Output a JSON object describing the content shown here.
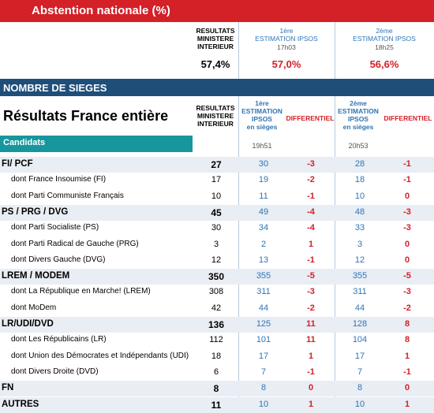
{
  "abstention": {
    "title": "Abstention nationale (%)",
    "col_ministere": "RESULTATS\nMINISTERE\nINTERIEUR",
    "col_est1_title": "1ère\nESTIMATION IPSOS",
    "col_est1_time": "17h03",
    "col_est2_title": "2ème\nESTIMATION IPSOS",
    "col_est2_time": "18h25",
    "val_ministere": "57,4%",
    "val_est1": "57,0%",
    "val_est2": "56,6%"
  },
  "sieges": {
    "bar_title": "NOMBRE DE SIEGES",
    "title": "Résultats France entière",
    "candidats_label": "Candidats",
    "col_ministere": "RESULTATS\nMINISTERE\nINTERIEUR",
    "col_est1": "1ère\nESTIMATION\nIPSOS\nen sièges",
    "col_diff1": "DIFFERENTIEL",
    "col_est2": "2ème\nESTIMATION\nIPSOS\nen sièges",
    "col_diff2": "DIFFERENTIEL",
    "time1": "19h51",
    "time2": "20h53"
  },
  "colors": {
    "red": "#d42027",
    "navy": "#1f4e79",
    "teal": "#17979d",
    "blue": "#2e75b6"
  },
  "rows": [
    {
      "label": "FI/ PCF",
      "type": "party",
      "ministere": "27",
      "est1": "30",
      "diff1": "-3",
      "est2": "28",
      "diff2": "-1"
    },
    {
      "label": "dont France Insoumise (FI)",
      "type": "sub",
      "ministere": "17",
      "est1": "19",
      "diff1": "-2",
      "est2": "18",
      "diff2": "-1"
    },
    {
      "label": "dont Parti Communiste Français",
      "type": "sub",
      "ministere": "10",
      "est1": "11",
      "diff1": "-1",
      "est2": "10",
      "diff2": "0"
    },
    {
      "label": "PS / PRG / DVG",
      "type": "party",
      "ministere": "45",
      "est1": "49",
      "diff1": "-4",
      "est2": "48",
      "diff2": "-3"
    },
    {
      "label": "dont Parti Socialiste (PS)",
      "type": "sub",
      "ministere": "30",
      "est1": "34",
      "diff1": "-4",
      "est2": "33",
      "diff2": "-3"
    },
    {
      "label": "dont Parti Radical de Gauche (PRG)",
      "type": "sub",
      "ministere": "3",
      "est1": "2",
      "diff1": "1",
      "est2": "3",
      "diff2": "0"
    },
    {
      "label": "dont Divers Gauche (DVG)",
      "type": "sub",
      "ministere": "12",
      "est1": "13",
      "diff1": "-1",
      "est2": "12",
      "diff2": "0"
    },
    {
      "label": "LREM / MODEM",
      "type": "party",
      "ministere": "350",
      "est1": "355",
      "diff1": "-5",
      "est2": "355",
      "diff2": "-5"
    },
    {
      "label": "dont La République en Marche! (LREM)",
      "type": "sub",
      "ministere": "308",
      "est1": "311",
      "diff1": "-3",
      "est2": "311",
      "diff2": "-3"
    },
    {
      "label": "dont MoDem",
      "type": "sub",
      "ministere": "42",
      "est1": "44",
      "diff1": "-2",
      "est2": "44",
      "diff2": "-2"
    },
    {
      "label": "LR/UDI/DVD",
      "type": "party",
      "ministere": "136",
      "est1": "125",
      "diff1": "11",
      "est2": "128",
      "diff2": "8"
    },
    {
      "label": "dont Les Républicains (LR)",
      "type": "sub",
      "ministere": "112",
      "est1": "101",
      "diff1": "11",
      "est2": "104",
      "diff2": "8"
    },
    {
      "label": "dont Union des Démocrates et Indépendants (UDI)",
      "type": "sub",
      "ministere": "18",
      "est1": "17",
      "diff1": "1",
      "est2": "17",
      "diff2": "1"
    },
    {
      "label": "dont Divers Droite (DVD)",
      "type": "sub",
      "ministere": "6",
      "est1": "7",
      "diff1": "-1",
      "est2": "7",
      "diff2": "-1"
    },
    {
      "label": "FN",
      "type": "party",
      "ministere": "8",
      "est1": "8",
      "diff1": "0",
      "est2": "8",
      "diff2": "0"
    },
    {
      "label": "AUTRES",
      "type": "party",
      "ministere": "11",
      "est1": "10",
      "diff1": "1",
      "est2": "10",
      "diff2": "1"
    }
  ]
}
